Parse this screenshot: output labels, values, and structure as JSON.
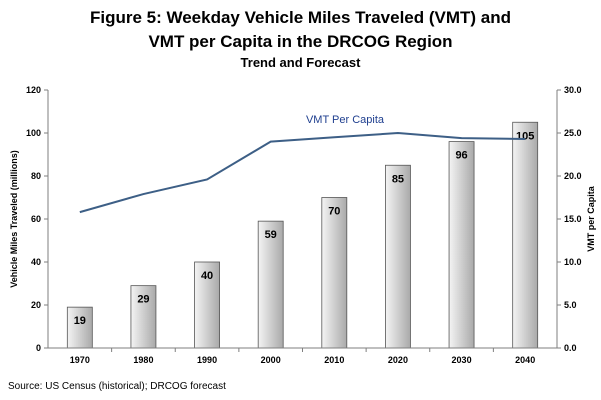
{
  "header": {
    "title_line1": "Figure 5:  Weekday Vehicle Miles Traveled (VMT) and",
    "title_line2": "VMT per Capita in the DRCOG Region",
    "subtitle": "Trend and Forecast"
  },
  "footer": {
    "source": "Source:  US Census (historical); DRCOG forecast"
  },
  "colors": {
    "line": "#3d5f86",
    "bar_light": "#f4f4f4",
    "bar_dark": "#a9a9a9",
    "bar_border": "#555555",
    "series_label": "#1f3f8f"
  },
  "chart_data": {
    "type": "bar",
    "categories": [
      "1970",
      "1980",
      "1990",
      "2000",
      "2010",
      "2020",
      "2030",
      "2040"
    ],
    "series": [
      {
        "name": "",
        "type": "bar",
        "axis": "left",
        "values": [
          19,
          29,
          40,
          59,
          70,
          85,
          96,
          105
        ],
        "labels": [
          "19",
          "29",
          "40",
          "59",
          "70",
          "85",
          "96",
          "105"
        ]
      },
      {
        "name": "VMT Per Capita",
        "type": "line",
        "axis": "right",
        "values": [
          15.8,
          17.9,
          19.6,
          24.0,
          24.5,
          25.0,
          24.4,
          24.3
        ]
      }
    ],
    "ylabel": "Vehicle Miles Traveled (millions)",
    "ylim": [
      0,
      120
    ],
    "yticks": [
      "0",
      "20",
      "40",
      "60",
      "80",
      "100",
      "120"
    ],
    "y2label": "VMT per Capita",
    "y2lim": [
      0,
      30
    ],
    "y2ticks": [
      "0.0",
      "5.0",
      "10.0",
      "15.0",
      "20.0",
      "25.0",
      "30.0"
    ],
    "grid": false,
    "legend": "none"
  }
}
